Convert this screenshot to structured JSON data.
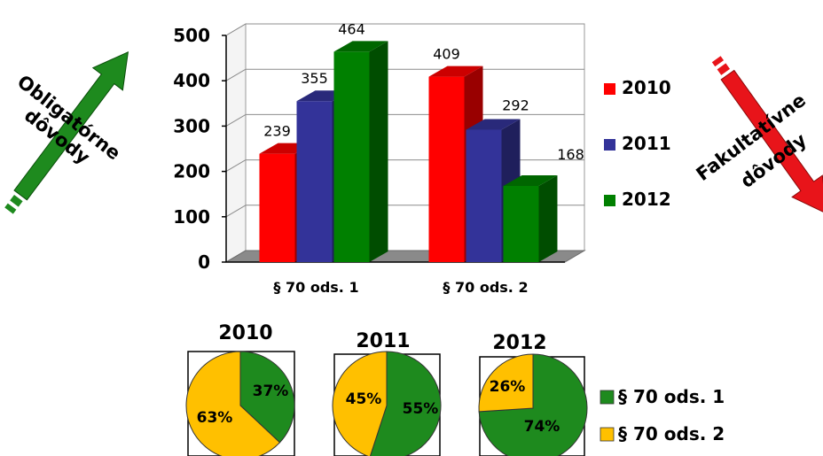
{
  "left_arrow": {
    "line1": "Obligatórne",
    "line2": "dôvody",
    "color": "#1e8a1e"
  },
  "right_arrow": {
    "line1": "Fakultatívne",
    "line2": "dôvody",
    "color": "#e8141a"
  },
  "chart_data": [
    {
      "type": "bar",
      "categories": [
        "§ 70 ods. 1",
        "§ 70 ods. 2"
      ],
      "series": [
        {
          "name": "2010",
          "values": [
            239,
            409
          ],
          "color": "#ff0000"
        },
        {
          "name": "2011",
          "values": [
            355,
            292
          ],
          "color": "#333399"
        },
        {
          "name": "2012",
          "values": [
            464,
            168
          ],
          "color": "#008000"
        }
      ],
      "ylim": [
        0,
        500
      ],
      "yticks": [
        0,
        100,
        200,
        300,
        400,
        500
      ],
      "ytick_labels": [
        "0",
        "100",
        "200",
        "300",
        "400",
        "500"
      ],
      "grid": true,
      "legend": "right",
      "three_d": true
    },
    {
      "type": "pie",
      "title": "2010",
      "labels": [
        "§ 70 ods. 1",
        "§ 70 ods. 2"
      ],
      "values": [
        37,
        63
      ],
      "value_labels": [
        "37%",
        "63%"
      ],
      "colors": [
        "#1e8a1e",
        "#ffc000"
      ]
    },
    {
      "type": "pie",
      "title": "2011",
      "labels": [
        "§ 70 ods. 1",
        "§ 70 ods. 2"
      ],
      "values": [
        55,
        45
      ],
      "value_labels": [
        "55%",
        "45%"
      ],
      "colors": [
        "#1e8a1e",
        "#ffc000"
      ]
    },
    {
      "type": "pie",
      "title": "2012",
      "labels": [
        "§ 70 ods. 1",
        "§ 70 ods. 2"
      ],
      "values": [
        74,
        26
      ],
      "value_labels": [
        "74%",
        "26%"
      ],
      "colors": [
        "#1e8a1e",
        "#ffc000"
      ]
    }
  ],
  "pie_legend": [
    {
      "label": "§ 70 ods. 1",
      "color": "#1e8a1e"
    },
    {
      "label": "§ 70 ods. 2",
      "color": "#ffc000"
    }
  ]
}
